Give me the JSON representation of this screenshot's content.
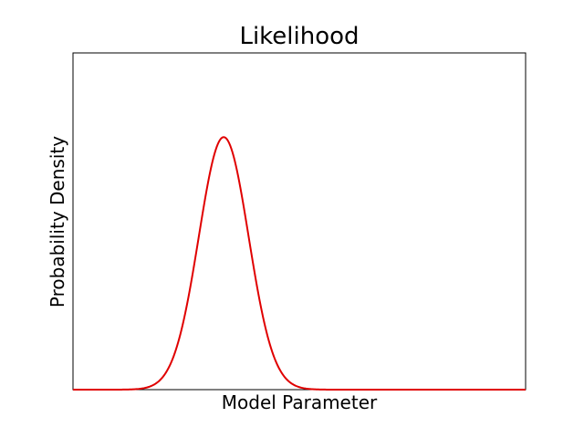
{
  "chart_data": {
    "type": "line",
    "title": "Likelihood",
    "xlabel": "Model Parameter",
    "ylabel": "Probability Density",
    "xlim": [
      0,
      1
    ],
    "ylim": [
      0,
      1
    ],
    "xticks": "none",
    "yticks": "none",
    "grid": false,
    "legend": "none",
    "series": [
      {
        "color": "#e00000",
        "curve": "gaussian",
        "mean": 0.333,
        "std": 0.055,
        "peak": 0.75
      }
    ]
  }
}
